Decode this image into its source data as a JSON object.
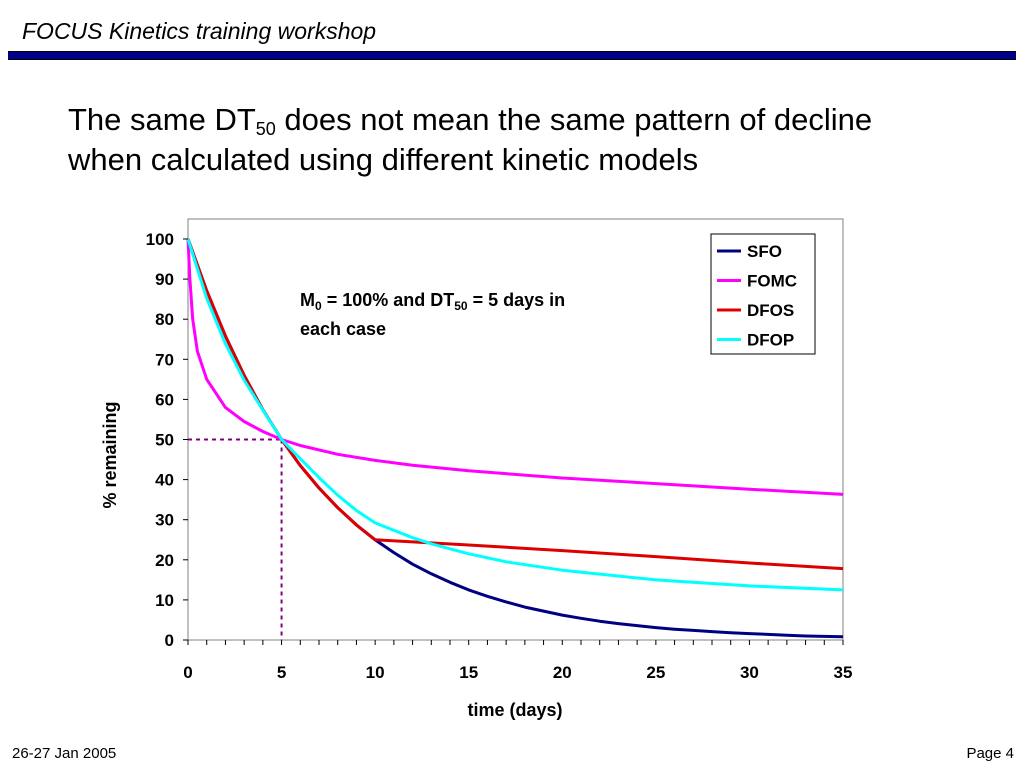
{
  "header": {
    "title": "FOCUS Kinetics training workshop"
  },
  "slide": {
    "title_part1": "The same DT",
    "title_sub": "50",
    "title_part2": " does not mean the same pattern of decline",
    "title_line2": "when calculated using different kinetic models"
  },
  "footer": {
    "date": "26-27 Jan 2005",
    "page": "Page 4"
  },
  "chart_data": {
    "type": "line",
    "title": "",
    "xlabel": "time (days)",
    "ylabel": "% remaining",
    "xlim": [
      0,
      35
    ],
    "ylim": [
      0,
      100
    ],
    "x_ticks": [
      0,
      5,
      10,
      15,
      20,
      25,
      30,
      35
    ],
    "y_ticks": [
      0,
      10,
      20,
      30,
      40,
      50,
      60,
      70,
      80,
      90,
      100
    ],
    "grid": false,
    "legend_position": "top-right",
    "annotation": {
      "line1_a": "M",
      "line1_sub_a": "0",
      "line1_b": " = 100% and DT",
      "line1_sub_b": "50",
      "line1_c": " = 5 days in",
      "line2": "each case"
    },
    "reference_lines": {
      "x": 5,
      "y": 50,
      "color": "#800080",
      "style": "dotted"
    },
    "series": [
      {
        "name": "SFO",
        "color": "#000080",
        "x": [
          0,
          1,
          2,
          3,
          4,
          5,
          6,
          7,
          8,
          9,
          10,
          11,
          12,
          13,
          14,
          15,
          16,
          17,
          18,
          19,
          20,
          21,
          22,
          23,
          24,
          25,
          26,
          27,
          28,
          29,
          30,
          31,
          32,
          33,
          34,
          35
        ],
        "y": [
          100,
          87.1,
          75.8,
          66,
          57.4,
          50,
          43.5,
          37.9,
          33,
          28.7,
          25,
          21.8,
          18.9,
          16.5,
          14.4,
          12.5,
          10.9,
          9.5,
          8.2,
          7.2,
          6.2,
          5.4,
          4.7,
          4.1,
          3.6,
          3.1,
          2.7,
          2.4,
          2.1,
          1.8,
          1.6,
          1.4,
          1.2,
          1.0,
          0.9,
          0.8
        ]
      },
      {
        "name": "FOMC",
        "color": "#ff00ff",
        "x": [
          0,
          0.1,
          0.25,
          0.5,
          1,
          2,
          3,
          4,
          5,
          6,
          8,
          10,
          12,
          15,
          20,
          25,
          30,
          35
        ],
        "y": [
          100,
          90,
          80,
          72,
          65,
          58,
          54.5,
          52,
          50,
          48.5,
          46.3,
          44.8,
          43.6,
          42.2,
          40.4,
          39,
          37.6,
          36.3
        ]
      },
      {
        "name": "DFOS",
        "color": "#dd0000",
        "x": [
          0,
          1,
          2,
          3,
          4,
          5,
          6,
          7,
          8,
          9,
          10,
          15,
          20,
          25,
          30,
          35
        ],
        "y": [
          100,
          87.1,
          75.8,
          66,
          57.4,
          50,
          43.5,
          37.9,
          33,
          28.7,
          25,
          23.7,
          22.3,
          20.8,
          19.2,
          17.8
        ]
      },
      {
        "name": "DFOP",
        "color": "#00ffff",
        "x": [
          0,
          1,
          2,
          3,
          4,
          5,
          6,
          7,
          8,
          9,
          10,
          12,
          13,
          15,
          17,
          20,
          25,
          30,
          35
        ],
        "y": [
          100,
          85.2,
          73.9,
          64.8,
          57.3,
          50,
          45.2,
          40.5,
          36.1,
          32.3,
          29.2,
          25.5,
          24,
          21.5,
          19.5,
          17.4,
          15,
          13.5,
          12.5
        ]
      }
    ]
  }
}
